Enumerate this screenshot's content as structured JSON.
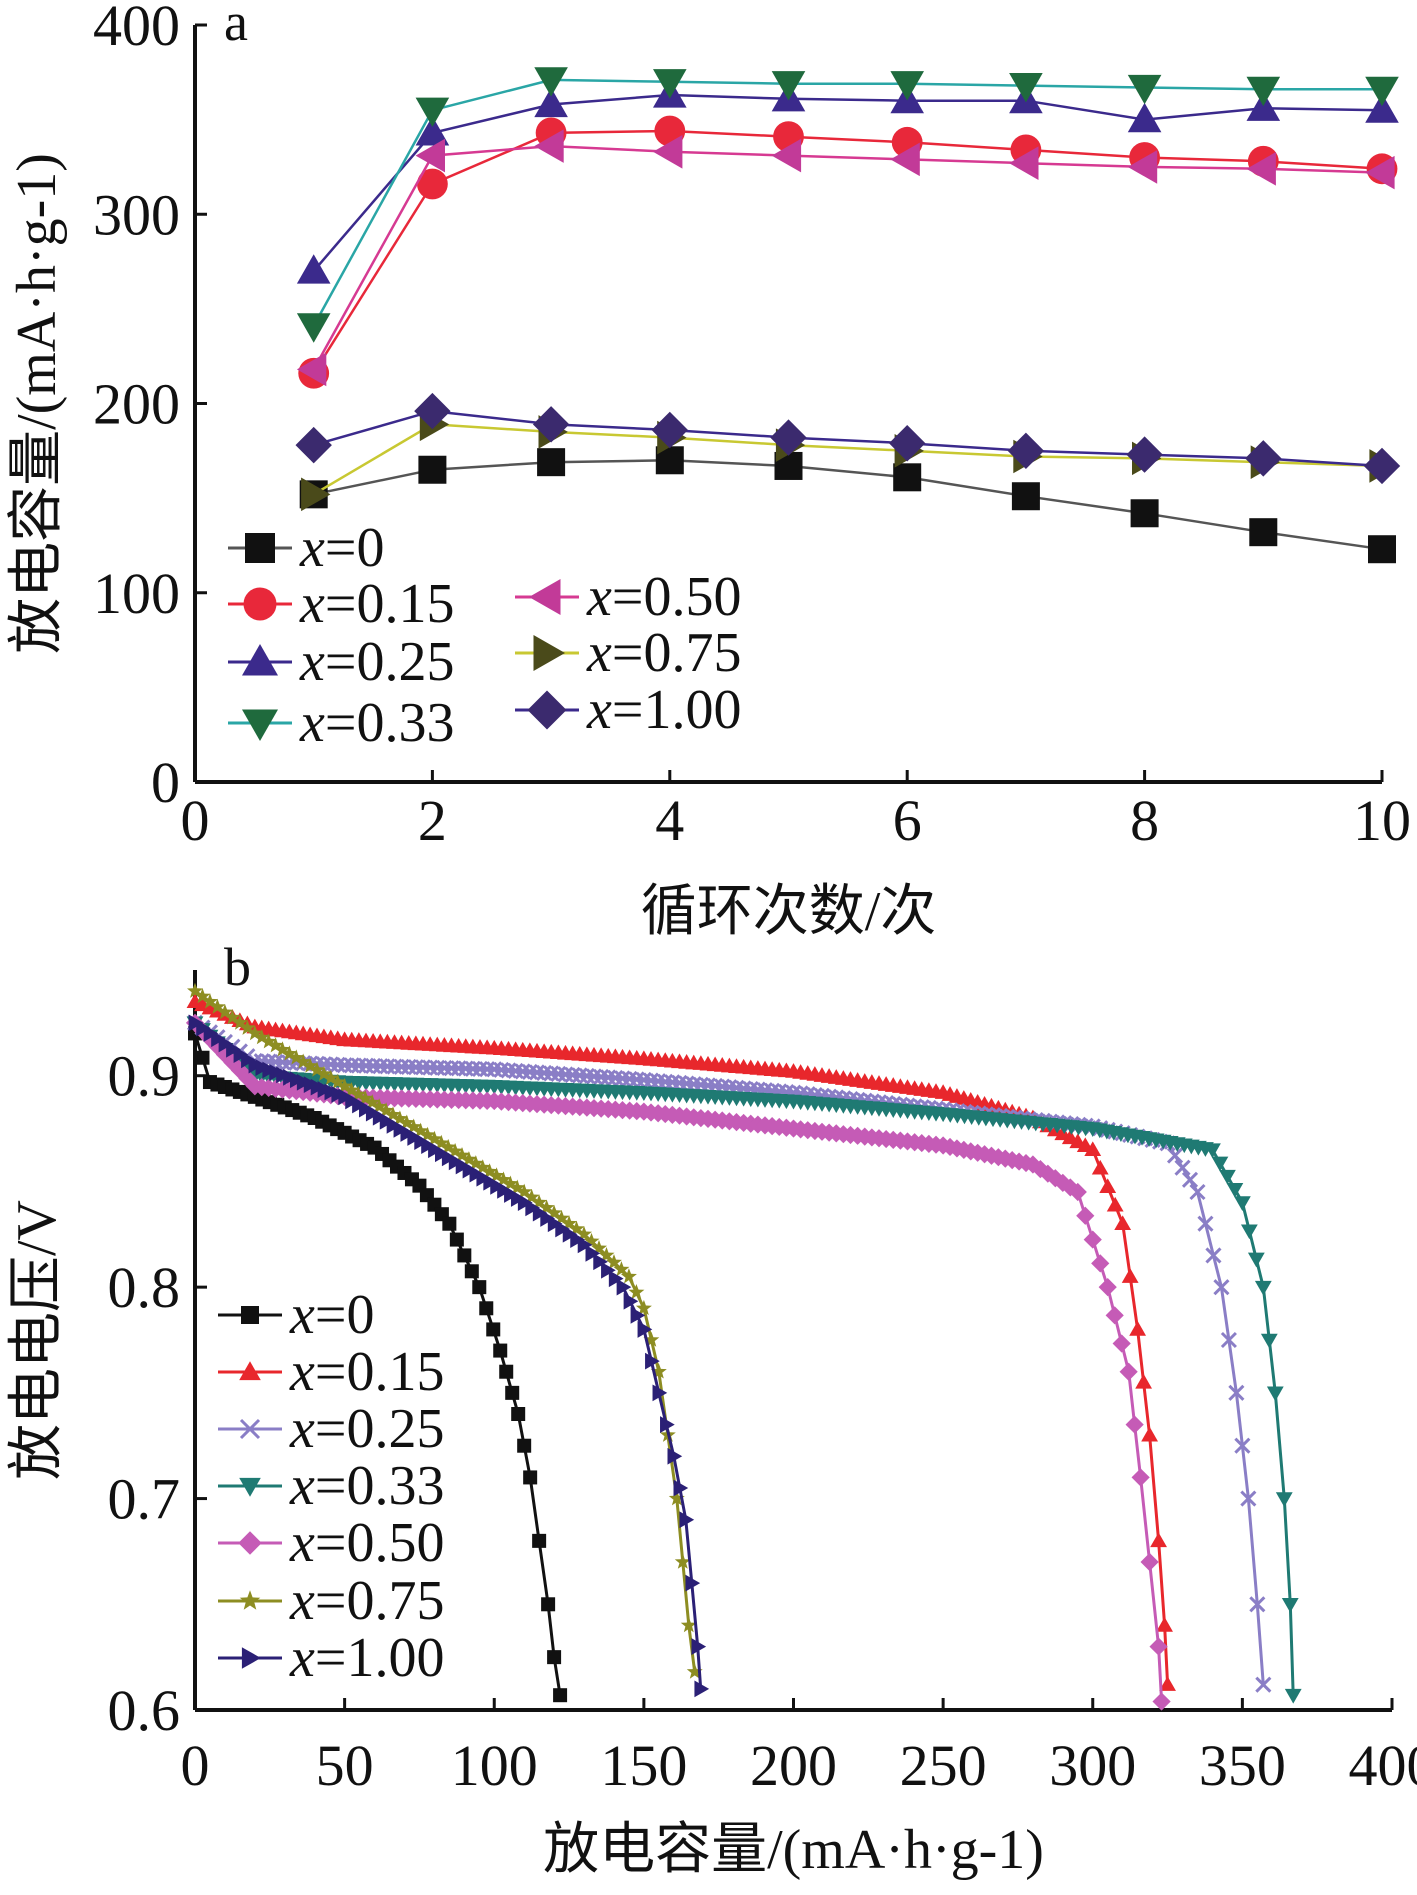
{
  "chart_data": [
    {
      "panel_label": "a",
      "type": "line",
      "xlabel": "循环次数/次",
      "ylabel": "放电容量/(mA·h·g-1)",
      "xlim": [
        0,
        10
      ],
      "ylim": [
        0,
        400
      ],
      "xticks": [
        "0",
        "2",
        "4",
        "6",
        "8",
        "10"
      ],
      "yticks": [
        "0",
        "100",
        "200",
        "300",
        "400"
      ],
      "grid": false,
      "legend": "lower-left",
      "x": [
        1,
        2,
        3,
        4,
        5,
        6,
        7,
        8,
        9,
        10
      ],
      "series": [
        {
          "name": "=0",
          "var": "x",
          "color": "#555555",
          "marker": "square",
          "markerColor": "#111111",
          "values": [
            152,
            165,
            169,
            170,
            167,
            161,
            151,
            142,
            132,
            123
          ]
        },
        {
          "name": "=0.15",
          "var": "x",
          "color": "#e8283a",
          "marker": "circle",
          "markerColor": "#e8283a",
          "values": [
            216,
            316,
            343,
            344,
            341,
            338,
            334,
            330,
            328,
            324
          ]
        },
        {
          "name": "=0.25",
          "var": "x",
          "color": "#3b2a8c",
          "marker": "triangle-up",
          "markerColor": "#3b2a8c",
          "values": [
            270,
            343,
            358,
            363,
            361,
            360,
            360,
            350,
            356,
            355
          ]
        },
        {
          "name": "=0.33",
          "var": "x",
          "color": "#2aa6a6",
          "marker": "triangle-down",
          "markerColor": "#1f6a3d",
          "values": [
            241,
            355,
            371,
            370,
            369,
            369,
            368,
            367,
            366,
            366
          ]
        },
        {
          "name": "=0.50",
          "var": "x",
          "color": "#d63a92",
          "marker": "triangle-left",
          "markerColor": "#c23a98",
          "values": [
            218,
            331,
            336,
            333,
            331,
            329,
            327,
            325,
            324,
            322
          ]
        },
        {
          "name": "=0.75",
          "var": "x",
          "color": "#c8c832",
          "marker": "triangle-right",
          "markerColor": "#4a4a1a",
          "values": [
            152,
            189,
            185,
            182,
            178,
            175,
            172,
            171,
            169,
            167
          ]
        },
        {
          "name": "=1.00",
          "var": "x",
          "color": "#3b2a8c",
          "marker": "diamond",
          "markerColor": "#3b2a6e",
          "values": [
            178,
            196,
            189,
            186,
            182,
            179,
            175,
            173,
            171,
            167
          ]
        }
      ]
    },
    {
      "panel_label": "b",
      "type": "line",
      "xlabel": "放电容量/(mA·h·g-1)",
      "ylabel": "放电电压/V",
      "xlim": [
        0,
        400
      ],
      "ylim": [
        0.6,
        0.95
      ],
      "xticks": [
        "0",
        "50",
        "100",
        "150",
        "200",
        "250",
        "300",
        "350",
        "400"
      ],
      "yticks": [
        "0.6",
        "0.7",
        "0.8",
        "0.9"
      ],
      "grid": false,
      "legend": "lower-left",
      "series": [
        {
          "name": "=0",
          "var": "x",
          "color": "#111111",
          "marker": "square",
          "x": [
            0,
            5,
            20,
            40,
            60,
            75,
            85,
            95,
            102,
            108,
            112,
            115,
            118,
            120,
            122
          ],
          "y": [
            0.92,
            0.897,
            0.89,
            0.88,
            0.866,
            0.848,
            0.83,
            0.8,
            0.77,
            0.74,
            0.71,
            0.68,
            0.65,
            0.625,
            0.607
          ]
        },
        {
          "name": "=0.15",
          "var": "x",
          "color": "#e8272c",
          "marker": "triangle-up",
          "x": [
            0,
            20,
            50,
            100,
            150,
            200,
            250,
            280,
            300,
            310,
            315,
            319,
            322,
            324,
            325
          ],
          "y": [
            0.935,
            0.923,
            0.917,
            0.913,
            0.908,
            0.902,
            0.892,
            0.88,
            0.865,
            0.83,
            0.78,
            0.73,
            0.68,
            0.64,
            0.612
          ]
        },
        {
          "name": "=0.25",
          "var": "x",
          "color": "#8a7ec6",
          "marker": "x",
          "x": [
            0,
            20,
            50,
            100,
            150,
            200,
            250,
            300,
            325,
            335,
            343,
            348,
            352,
            355,
            357
          ],
          "y": [
            0.925,
            0.907,
            0.905,
            0.903,
            0.898,
            0.892,
            0.884,
            0.876,
            0.868,
            0.845,
            0.8,
            0.75,
            0.7,
            0.65,
            0.612
          ]
        },
        {
          "name": "=0.33",
          "var": "x",
          "color": "#1f7a73",
          "marker": "triangle-down",
          "x": [
            0,
            20,
            50,
            100,
            150,
            200,
            250,
            300,
            340,
            350,
            357,
            361,
            364,
            366,
            367
          ],
          "y": [
            0.925,
            0.9,
            0.897,
            0.895,
            0.892,
            0.888,
            0.882,
            0.875,
            0.865,
            0.84,
            0.8,
            0.75,
            0.7,
            0.65,
            0.607
          ]
        },
        {
          "name": "=0.50",
          "var": "x",
          "color": "#c55bb6",
          "marker": "diamond",
          "x": [
            0,
            20,
            50,
            100,
            150,
            200,
            250,
            280,
            295,
            305,
            312,
            316,
            319,
            322,
            323
          ],
          "y": [
            0.925,
            0.895,
            0.89,
            0.888,
            0.883,
            0.875,
            0.867,
            0.858,
            0.845,
            0.8,
            0.76,
            0.71,
            0.67,
            0.63,
            0.604
          ]
        },
        {
          "name": "=0.75",
          "var": "x",
          "color": "#8d8d22",
          "marker": "star",
          "x": [
            0,
            20,
            50,
            80,
            110,
            130,
            145,
            150,
            155,
            158,
            161,
            163,
            165,
            167
          ],
          "y": [
            0.94,
            0.92,
            0.895,
            0.87,
            0.845,
            0.825,
            0.805,
            0.79,
            0.76,
            0.73,
            0.7,
            0.67,
            0.64,
            0.618
          ]
        },
        {
          "name": "=1.00",
          "var": "x",
          "color": "#2b2076",
          "marker": "triangle-right",
          "x": [
            0,
            20,
            50,
            80,
            110,
            130,
            143,
            150,
            155,
            160,
            164,
            166,
            168,
            169
          ],
          "y": [
            0.925,
            0.905,
            0.89,
            0.865,
            0.84,
            0.82,
            0.8,
            0.78,
            0.75,
            0.72,
            0.69,
            0.66,
            0.63,
            0.61
          ]
        }
      ]
    }
  ]
}
